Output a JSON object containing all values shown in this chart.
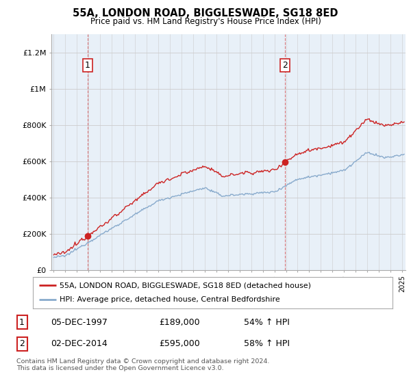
{
  "title": "55A, LONDON ROAD, BIGGLESWADE, SG18 8ED",
  "subtitle": "Price paid vs. HM Land Registry's House Price Index (HPI)",
  "ylabel_ticks": [
    "£0",
    "£200K",
    "£400K",
    "£600K",
    "£800K",
    "£1M",
    "£1.2M"
  ],
  "ytick_values": [
    0,
    200000,
    400000,
    600000,
    800000,
    1000000,
    1200000
  ],
  "ylim": [
    0,
    1300000
  ],
  "xlim_start": 1994.8,
  "xlim_end": 2025.3,
  "sale1_x": 1997.92,
  "sale1_y": 189000,
  "sale1_label": "1",
  "sale2_x": 2014.92,
  "sale2_y": 595000,
  "sale2_label": "2",
  "red_color": "#cc2222",
  "blue_color": "#88aacc",
  "dashed_color": "#cc2222",
  "chart_bg": "#e8f0f8",
  "legend_red_label": "55A, LONDON ROAD, BIGGLESWADE, SG18 8ED (detached house)",
  "legend_blue_label": "HPI: Average price, detached house, Central Bedfordshire",
  "annotation1_date": "05-DEC-1997",
  "annotation1_price": "£189,000",
  "annotation1_hpi": "54% ↑ HPI",
  "annotation2_date": "02-DEC-2014",
  "annotation2_price": "£595,000",
  "annotation2_hpi": "58% ↑ HPI",
  "footer": "Contains HM Land Registry data © Crown copyright and database right 2024.\nThis data is licensed under the Open Government Licence v3.0.",
  "background_color": "#ffffff",
  "grid_color": "#cccccc"
}
